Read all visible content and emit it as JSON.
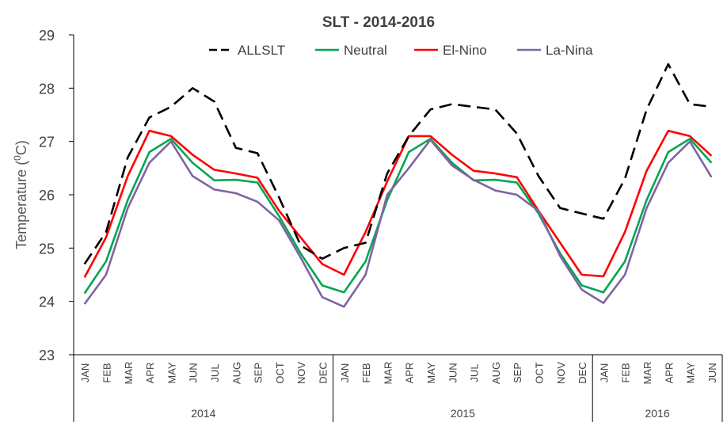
{
  "chart_data": {
    "type": "line",
    "title": "SLT  - 2014-2016",
    "ylabel": "Temperature (",
    "ylabel_sup": "0",
    "ylabel_unit": "C)",
    "ylim": [
      23,
      29
    ],
    "yticks": [
      "23",
      "24",
      "25",
      "26",
      "27",
      "28",
      "29"
    ],
    "categories": [
      "JAN",
      "FEB",
      "MAR",
      "APR",
      "MAY",
      "JUN",
      "JUL",
      "AUG",
      "SEP",
      "OCT",
      "NOV",
      "DEC",
      "JAN",
      "FEB",
      "MAR",
      "APR",
      "MAY",
      "JUN",
      "JUL",
      "AUG",
      "SEP",
      "OCT",
      "NOV",
      "DEC",
      "JAN",
      "FEB",
      "MAR",
      "APR",
      "MAY",
      "JUN"
    ],
    "groups": [
      {
        "label": "2014",
        "count": 12
      },
      {
        "label": "2015",
        "count": 12
      },
      {
        "label": "2016",
        "count": 6
      }
    ],
    "legend_position": "top",
    "grid": false,
    "series": [
      {
        "name": "ALLSLT",
        "color": "#000000",
        "dashed": true,
        "values": [
          24.7,
          25.3,
          26.7,
          27.45,
          27.65,
          28.0,
          27.75,
          26.88,
          26.78,
          25.95,
          25.05,
          24.8,
          25.0,
          25.1,
          26.4,
          27.1,
          27.6,
          27.7,
          27.65,
          27.6,
          27.15,
          26.35,
          25.75,
          25.65,
          25.55,
          26.3,
          27.6,
          28.45,
          27.7,
          27.65
        ]
      },
      {
        "name": "Neutral",
        "color": "#00A651",
        "dashed": false,
        "values": [
          24.15,
          24.75,
          25.9,
          26.8,
          27.05,
          26.6,
          26.27,
          26.28,
          26.23,
          25.6,
          24.9,
          24.3,
          24.17,
          24.75,
          25.9,
          26.8,
          27.05,
          26.6,
          26.27,
          26.28,
          26.23,
          25.65,
          24.9,
          24.3,
          24.17,
          24.75,
          25.9,
          26.8,
          27.05,
          26.6
        ]
      },
      {
        "name": "El-Nino",
        "color": "#FF0000",
        "dashed": false,
        "values": [
          24.45,
          25.2,
          26.35,
          27.2,
          27.1,
          26.75,
          26.47,
          26.4,
          26.32,
          25.7,
          25.2,
          24.7,
          24.5,
          25.3,
          26.25,
          27.1,
          27.1,
          26.75,
          26.45,
          26.4,
          26.33,
          25.7,
          25.1,
          24.5,
          24.47,
          25.3,
          26.45,
          27.2,
          27.1,
          26.73
        ]
      },
      {
        "name": "La-Nina",
        "color": "#8064A2",
        "dashed": false,
        "values": [
          23.95,
          24.5,
          25.75,
          26.6,
          27.0,
          26.35,
          26.1,
          26.03,
          25.87,
          25.52,
          24.82,
          24.08,
          23.9,
          24.5,
          26.0,
          26.5,
          27.03,
          26.55,
          26.28,
          26.08,
          26.0,
          25.7,
          24.85,
          24.22,
          23.97,
          24.5,
          25.75,
          26.6,
          27.0,
          26.33
        ]
      }
    ]
  }
}
